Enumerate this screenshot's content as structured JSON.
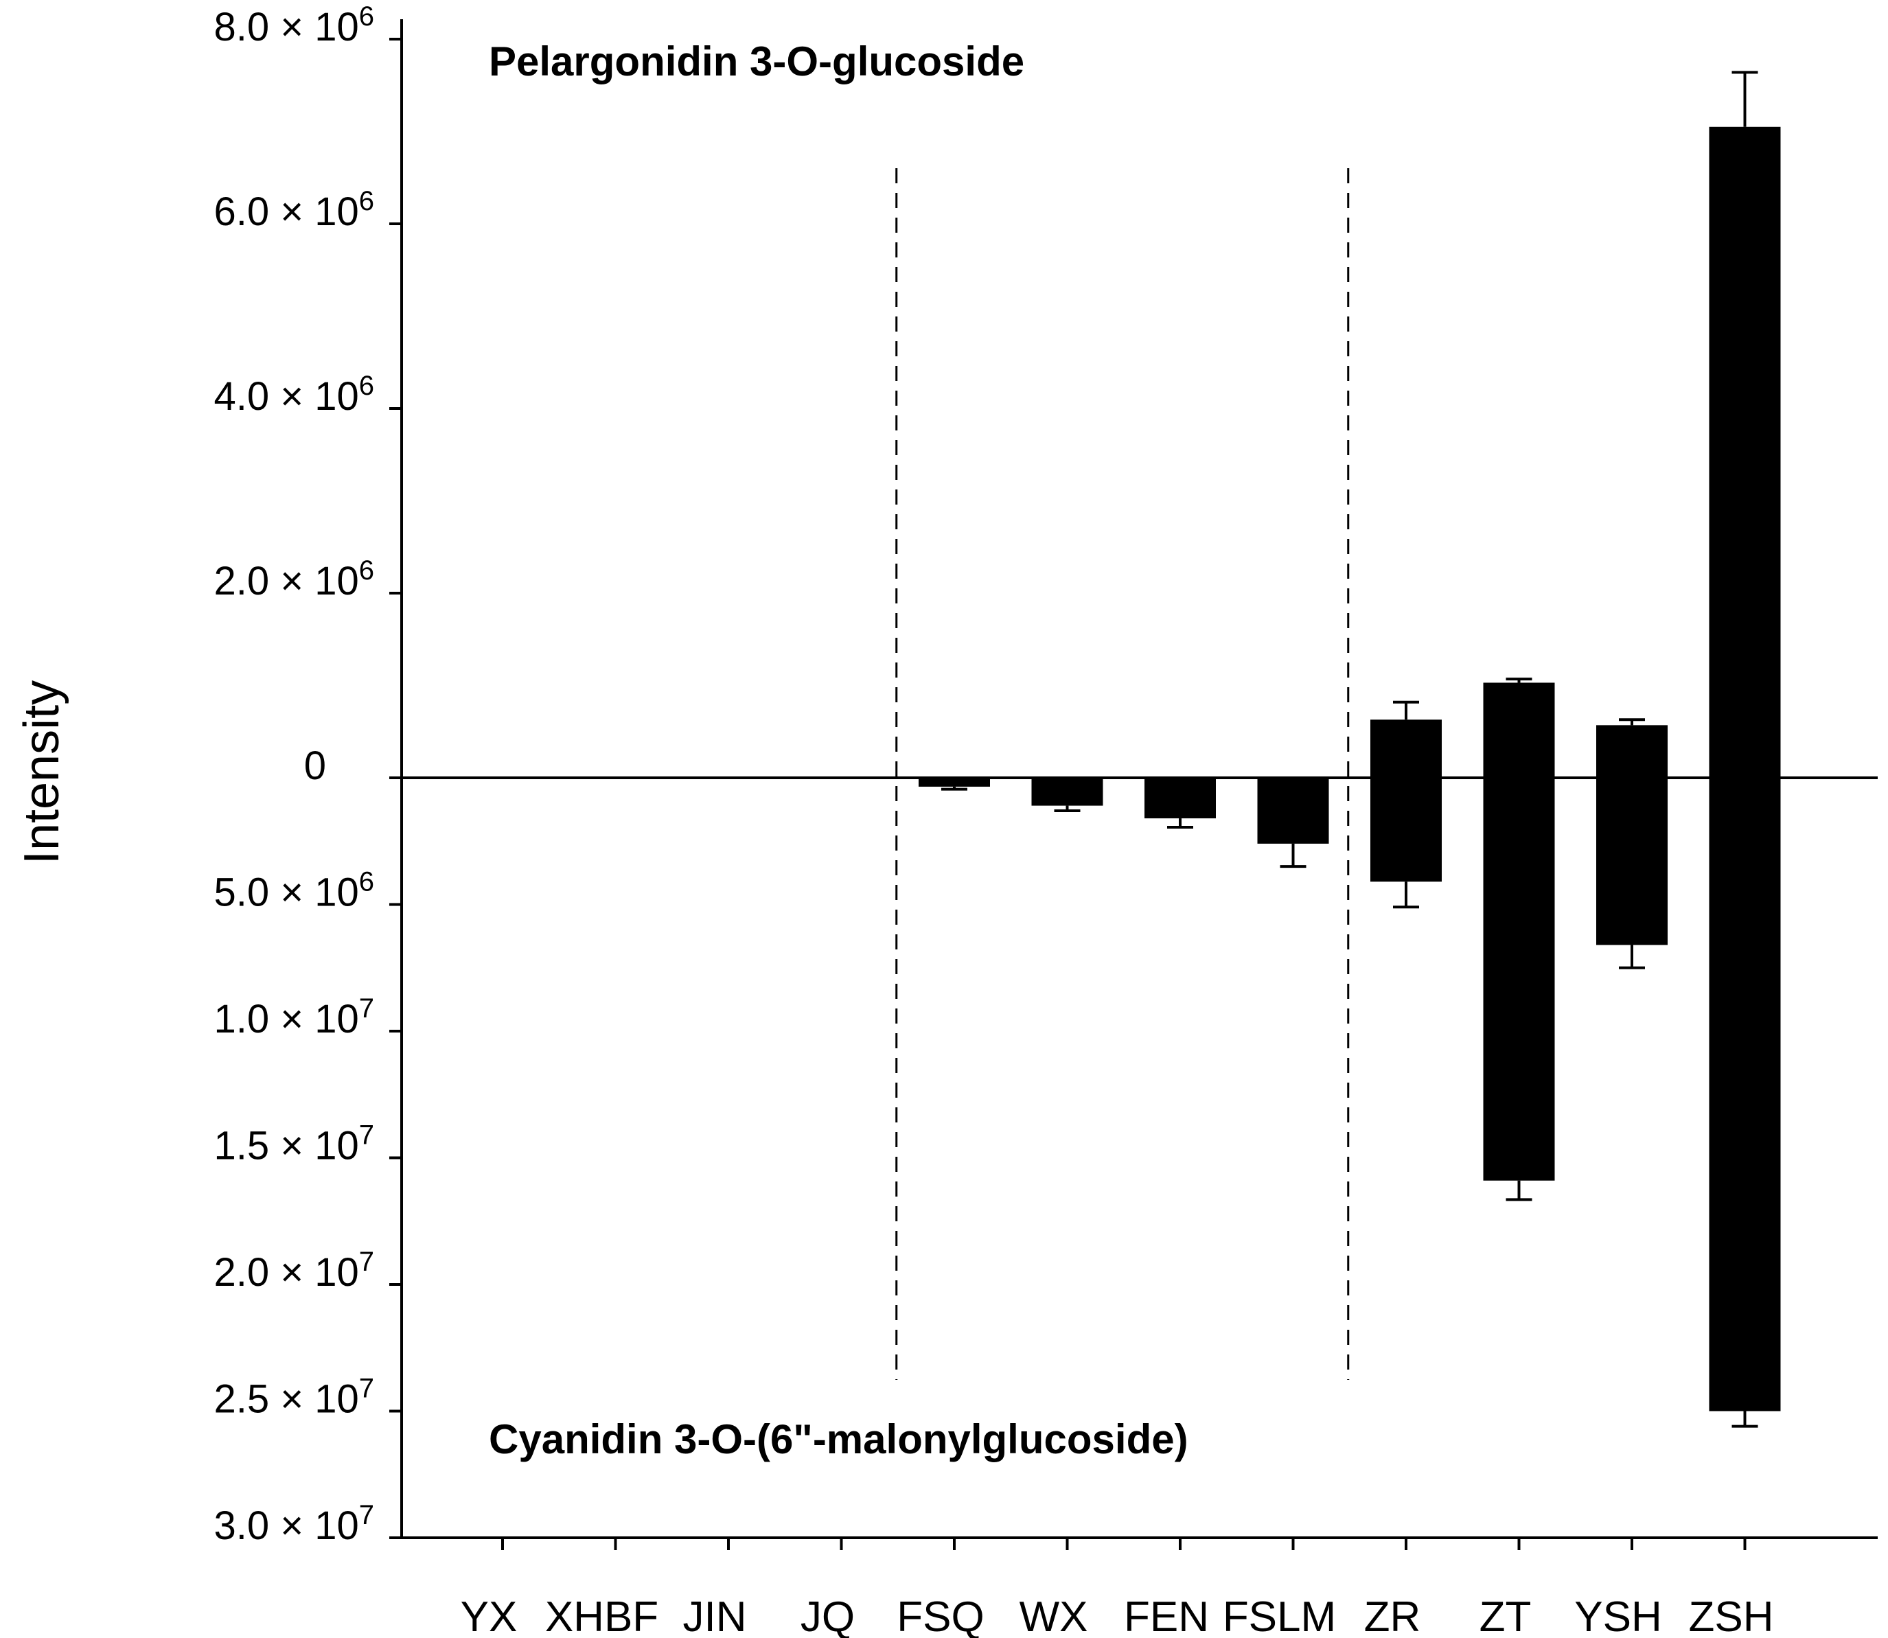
{
  "chart_data": {
    "type": "bar",
    "ylabel": "Intensity",
    "categories": [
      "YX",
      "XHBF",
      "JIN",
      "JQ",
      "FSQ",
      "WX",
      "FEN",
      "FSLM",
      "ZR",
      "ZT",
      "YSH",
      "ZSH"
    ],
    "upper": {
      "label": "Pelargonidin 3-O-glucoside",
      "ylim": [
        0,
        8000000
      ],
      "ticks": [
        {
          "value": 0,
          "label": "0",
          "mant": "",
          "exp": ""
        },
        {
          "value": 2000000,
          "label": "2.0 × 10^6",
          "mant": "2.0 × 10",
          "exp": "6"
        },
        {
          "value": 4000000,
          "label": "4.0 × 10^6",
          "mant": "4.0 × 10",
          "exp": "6"
        },
        {
          "value": 6000000,
          "label": "6.0 × 10^6",
          "mant": "6.0 × 10",
          "exp": "6"
        },
        {
          "value": 8000000,
          "label": "8.0 × 10^6",
          "mant": "8.0 × 10",
          "exp": "6"
        }
      ],
      "values": [
        0,
        0,
        0,
        0,
        0,
        0,
        0,
        0,
        630000,
        1030000,
        570000,
        7050000
      ],
      "errors": [
        0,
        0,
        0,
        0,
        0,
        0,
        0,
        0,
        190000,
        40000,
        60000,
        590000
      ]
    },
    "lower": {
      "label": "Cyanidin 3-O-(6\"-malonylglucoside)",
      "ylim": [
        0,
        30000000
      ],
      "ticks": [
        {
          "value": 5000000,
          "label": "5.0 × 10^6",
          "mant": "5.0 × 10",
          "exp": "6"
        },
        {
          "value": 10000000,
          "label": "1.0 × 10^7",
          "mant": "1.0 × 10",
          "exp": "7"
        },
        {
          "value": 15000000,
          "label": "1.5 × 10^7",
          "mant": "1.5 × 10",
          "exp": "7"
        },
        {
          "value": 20000000,
          "label": "2.0 × 10^7",
          "mant": "2.0 × 10",
          "exp": "7"
        },
        {
          "value": 25000000,
          "label": "2.5 × 10^7",
          "mant": "2.5 × 10",
          "exp": "7"
        },
        {
          "value": 30000000,
          "label": "3.0 × 10^7",
          "mant": "3.0 × 10",
          "exp": "7"
        }
      ],
      "values": [
        0,
        0,
        0,
        0,
        350000,
        1100000,
        1600000,
        2600000,
        4100000,
        15900000,
        6600000,
        25000000
      ],
      "errors": [
        0,
        0,
        0,
        0,
        100000,
        200000,
        350000,
        900000,
        1000000,
        750000,
        900000,
        600000
      ]
    },
    "group_dividers_after": [
      4,
      8
    ],
    "group_dividers_style": "dashed"
  }
}
